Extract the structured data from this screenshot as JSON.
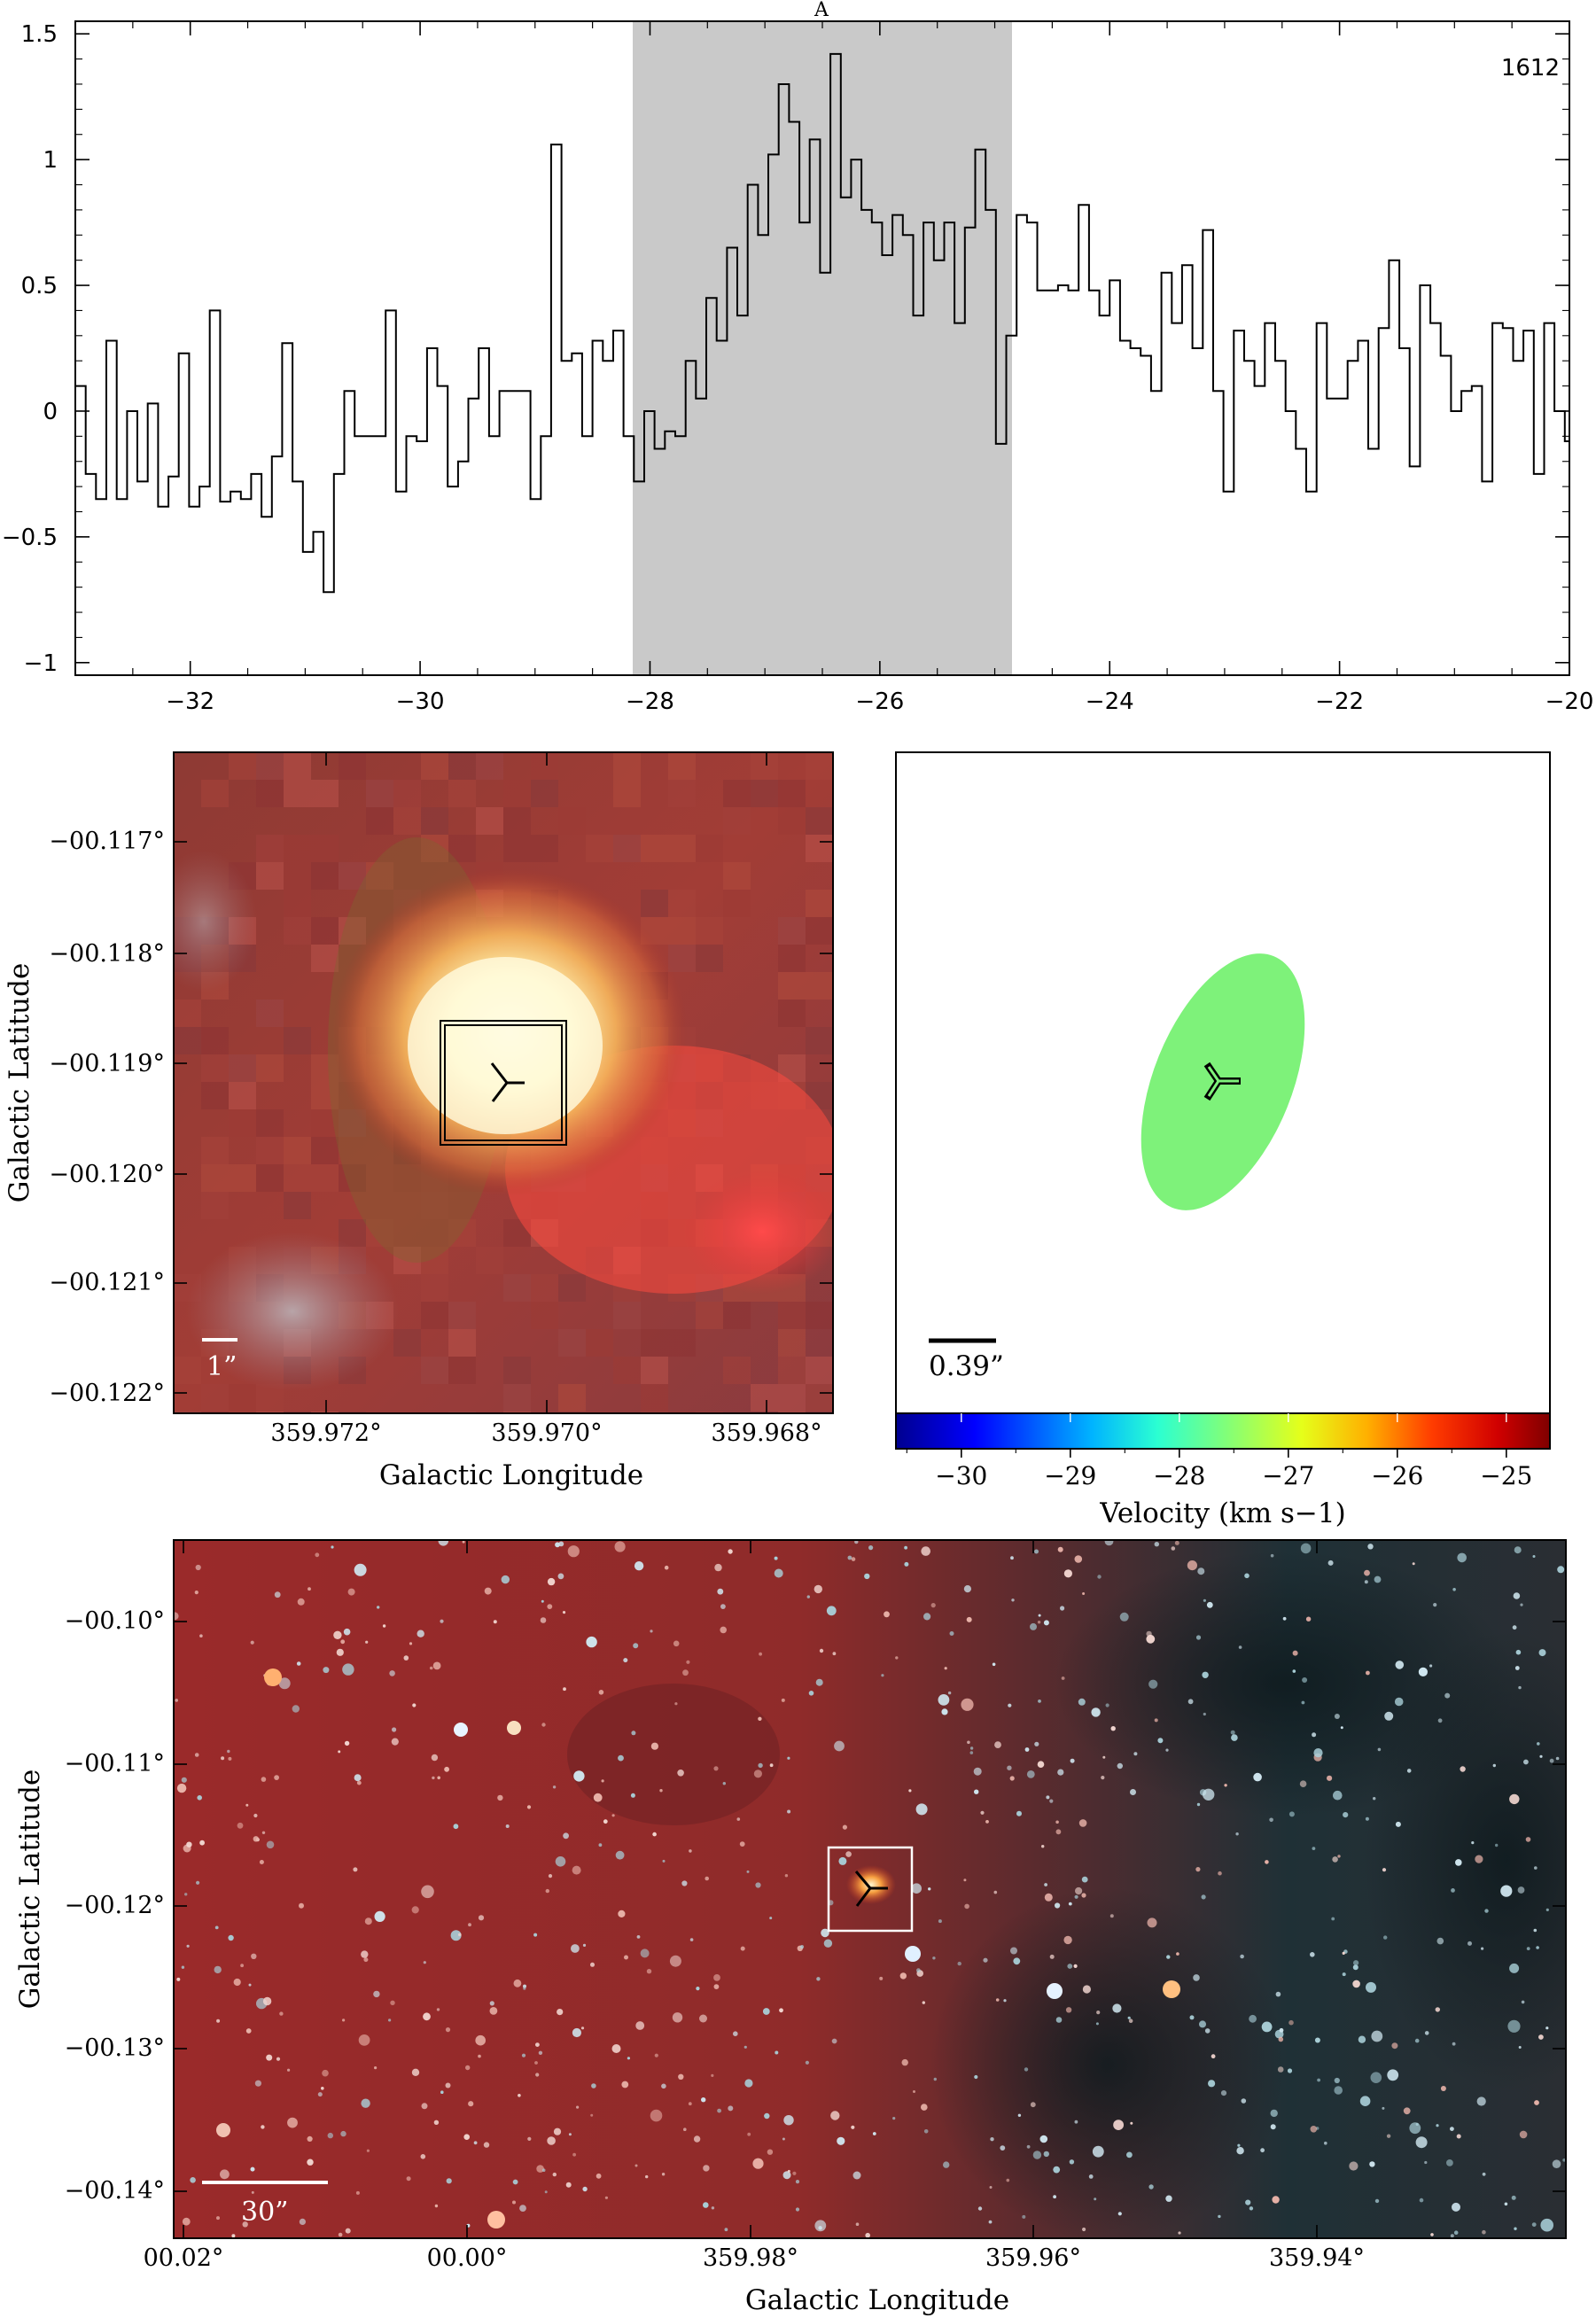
{
  "chart_data": [
    {
      "type": "line",
      "style": "step",
      "panel_label": "A",
      "annotation": "1612",
      "xlim": [
        -33,
        -20
      ],
      "ylim": [
        -1.05,
        1.55
      ],
      "x_ticks": [
        -32,
        -30,
        -28,
        -26,
        -24,
        -22,
        -20
      ],
      "x_tick_labels": [
        "−32",
        "−30",
        "−28",
        "−26",
        "−24",
        "−22",
        "−20"
      ],
      "y_ticks": [
        -1,
        -0.5,
        0,
        0.5,
        1,
        1.5
      ],
      "y_tick_labels": [
        "−1",
        "−0.5",
        "0",
        "0.5",
        "1",
        "1.5"
      ],
      "shaded_range": [
        -28.15,
        -24.85
      ],
      "shade_color": "#c9c9c9",
      "series": [
        {
          "x_start": -33.0,
          "x_step": 0.09,
          "values": [
            0.1,
            -0.25,
            -0.35,
            0.28,
            -0.35,
            -0.0,
            -0.28,
            0.03,
            -0.38,
            -0.26,
            0.23,
            -0.38,
            -0.3,
            0.4,
            -0.36,
            -0.32,
            -0.35,
            -0.25,
            -0.42,
            -0.18,
            0.27,
            -0.28,
            -0.56,
            -0.48,
            -0.72,
            -0.25,
            0.08,
            -0.1,
            -0.1,
            -0.1,
            0.4,
            -0.32,
            -0.1,
            -0.12,
            0.25,
            0.1,
            -0.3,
            -0.2,
            0.05,
            0.25,
            -0.1,
            0.08,
            0.08,
            0.08,
            -0.35,
            -0.1,
            1.06,
            0.2,
            0.23,
            -0.1,
            0.28,
            0.2,
            0.32,
            -0.1,
            -0.28,
            -0.0,
            -0.15,
            -0.08,
            -0.1,
            0.2,
            0.05,
            0.45,
            0.28,
            0.65,
            0.38,
            0.9,
            0.7,
            1.02,
            1.3,
            1.15,
            0.75,
            1.08,
            0.55,
            1.42,
            0.85,
            1.0,
            0.8,
            0.75,
            0.62,
            0.78,
            0.7,
            0.38,
            0.75,
            0.6,
            0.75,
            0.35,
            0.73,
            1.04,
            0.8,
            -0.13,
            0.3,
            0.78,
            0.75,
            0.48,
            0.48,
            0.5,
            0.48,
            0.82,
            0.48,
            0.38,
            0.52,
            0.28,
            0.25,
            0.22,
            0.08,
            0.55,
            0.35,
            0.58,
            0.25,
            0.72,
            0.08,
            -0.32,
            0.32,
            0.2,
            0.1,
            0.35,
            0.2,
            0.0,
            -0.15,
            -0.32,
            0.35,
            0.05,
            0.05,
            0.2,
            0.28,
            -0.15,
            0.33,
            0.6,
            0.25,
            -0.22,
            0.5,
            0.35,
            0.22,
            0.0,
            0.08,
            0.1,
            -0.28,
            0.35,
            0.33,
            0.2,
            0.32,
            -0.25,
            0.35,
            0.0,
            -0.12,
            -0.0,
            -0.1,
            0.12,
            0.33,
            0.1,
            0.58,
            -0.2,
            -0.15,
            -0.2,
            -0.3,
            0.38,
            0.25,
            0.15,
            0.4,
            0.05,
            -0.0,
            0.27,
            0.1,
            0.25,
            -0.25,
            -0.56,
            0.15,
            0.0,
            -0.08,
            0.3,
            0.28,
            0.0
          ]
        }
      ]
    },
    {
      "type": "image",
      "xlabel": "Galactic Longitude",
      "ylabel": "Galactic Latitude",
      "x_tick_labels": [
        "359.972°",
        "359.970°",
        "359.968°"
      ],
      "y_tick_labels": [
        "−00.117°",
        "−00.118°",
        "−00.119°",
        "−00.120°",
        "−00.121°",
        "−00.122°"
      ],
      "scalebar_label": "1”",
      "marker": "tri-marker"
    },
    {
      "type": "ellipse-map",
      "xlabel": "Velocity (km s−1)",
      "colorbar_ticks": [
        "−30",
        "−29",
        "−28",
        "−27",
        "−26",
        "−25"
      ],
      "colorbar_range": [
        -30.6,
        -24.6
      ],
      "ellipse_velocity": -27.6,
      "ellipse_color": "#7ef27a",
      "scalebar_label": "0.39”",
      "marker": "tri-marker"
    },
    {
      "type": "image",
      "xlabel": "Galactic Longitude",
      "ylabel": "Galactic Latitude",
      "x_tick_labels": [
        "00.02°",
        "00.00°",
        "359.98°",
        "359.96°",
        "359.94°"
      ],
      "y_tick_labels": [
        "−00.10°",
        "−00.11°",
        "−00.12°",
        "−00.13°",
        "−00.14°"
      ],
      "scalebar_label": "30”",
      "marker": "tri-marker"
    }
  ]
}
